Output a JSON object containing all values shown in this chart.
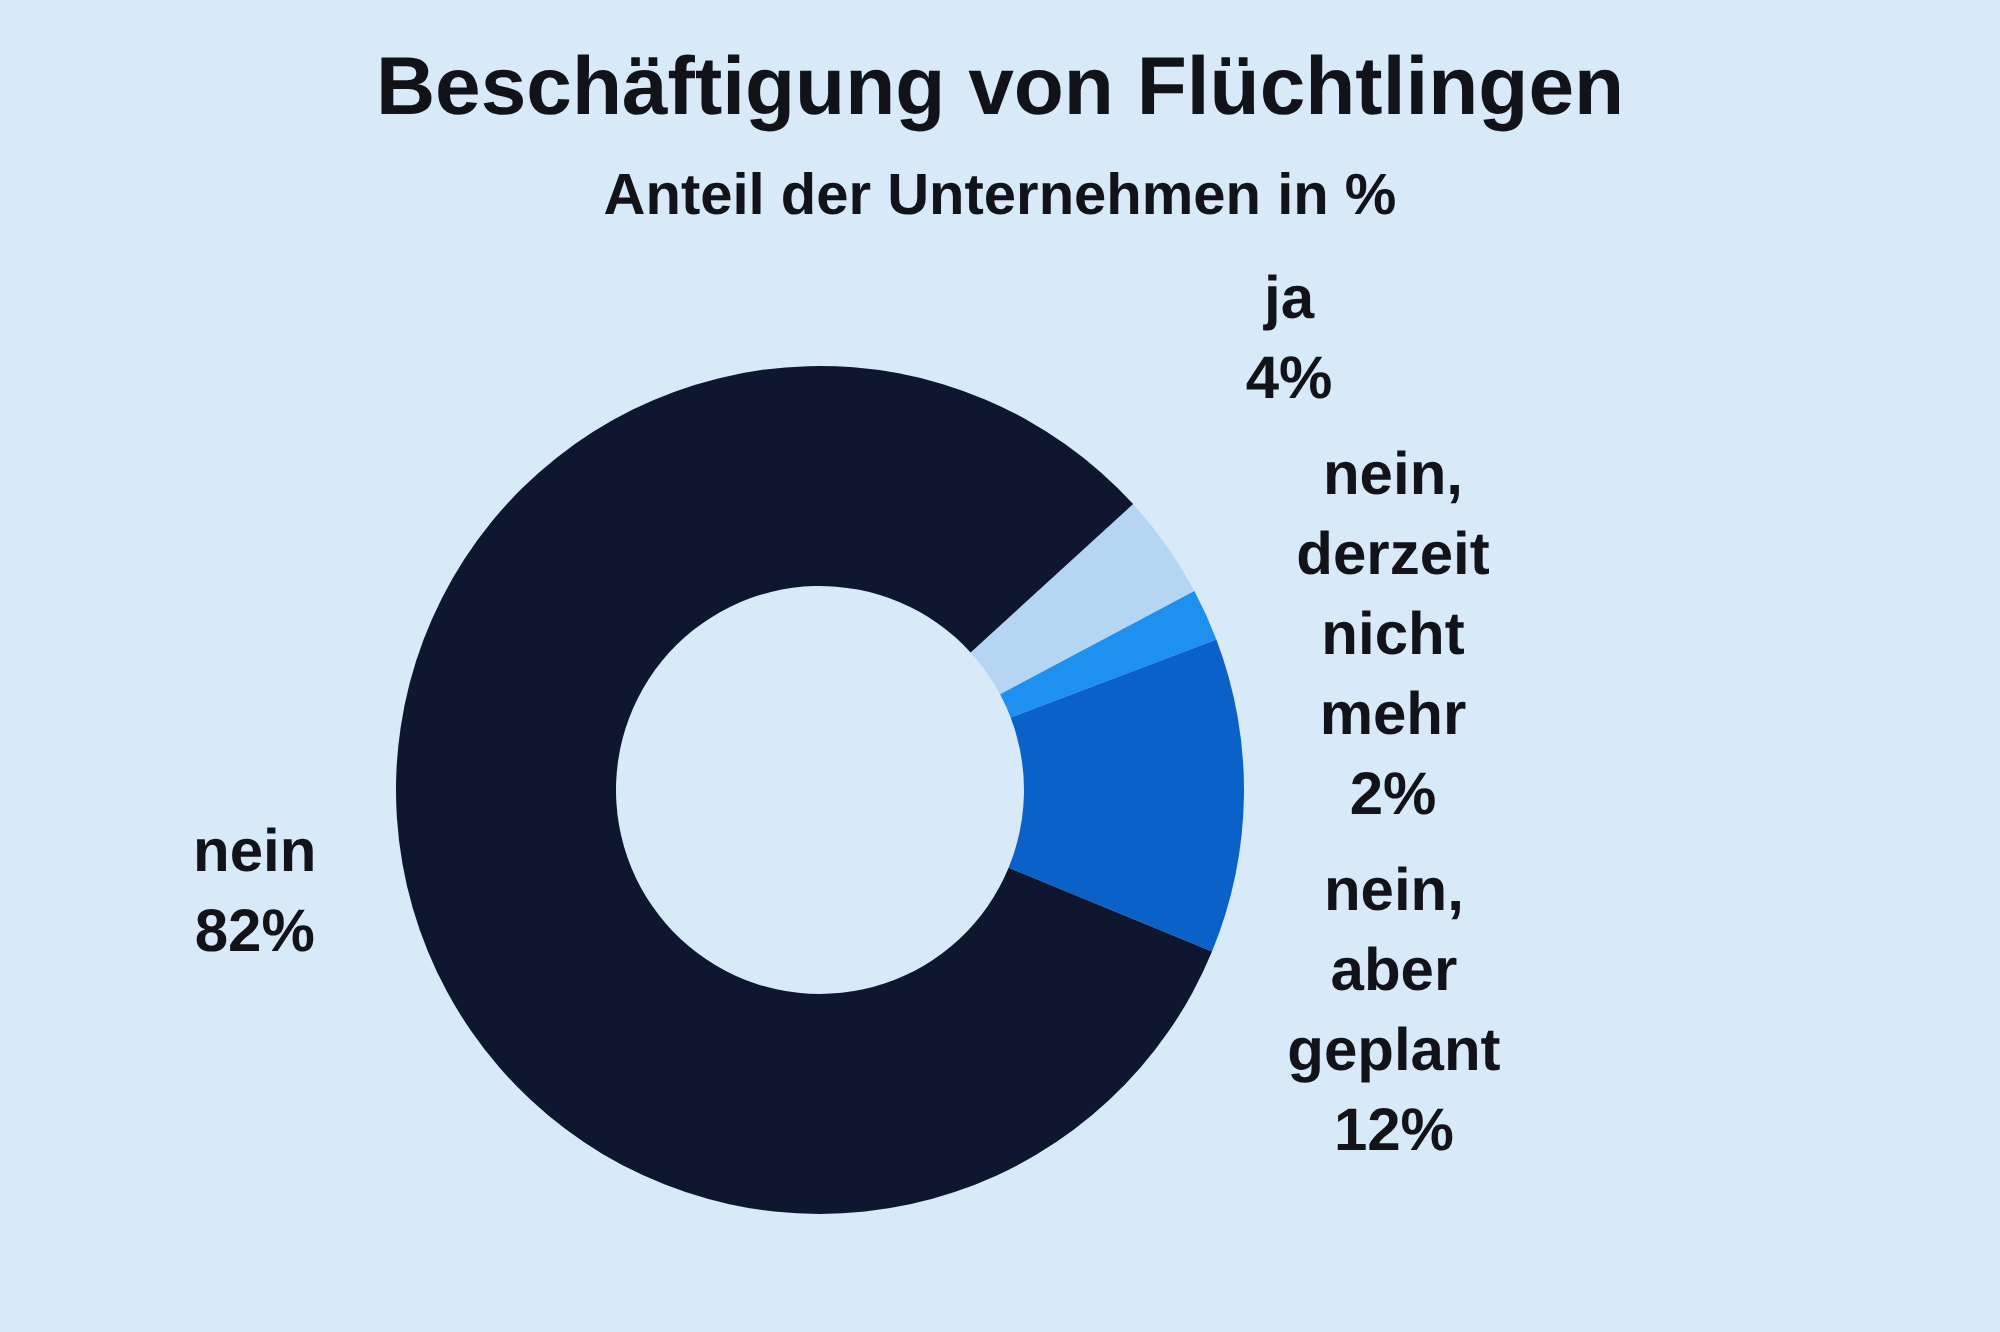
{
  "chart_data": {
    "type": "donut",
    "title": "Beschäftigung von Flüchtlingen",
    "subtitle": "Anteil der Unternehmen in %",
    "categories": [
      "ja",
      "nein, derzeit nicht mehr",
      "nein, aber geplant",
      "nein"
    ],
    "values": [
      4,
      2,
      12,
      82
    ],
    "colors": [
      "#b5d6f3",
      "#1e90f0",
      "#0a62c8",
      "#0e1630"
    ],
    "value_labels": [
      "4%",
      "2%",
      "12%",
      "82%"
    ]
  }
}
